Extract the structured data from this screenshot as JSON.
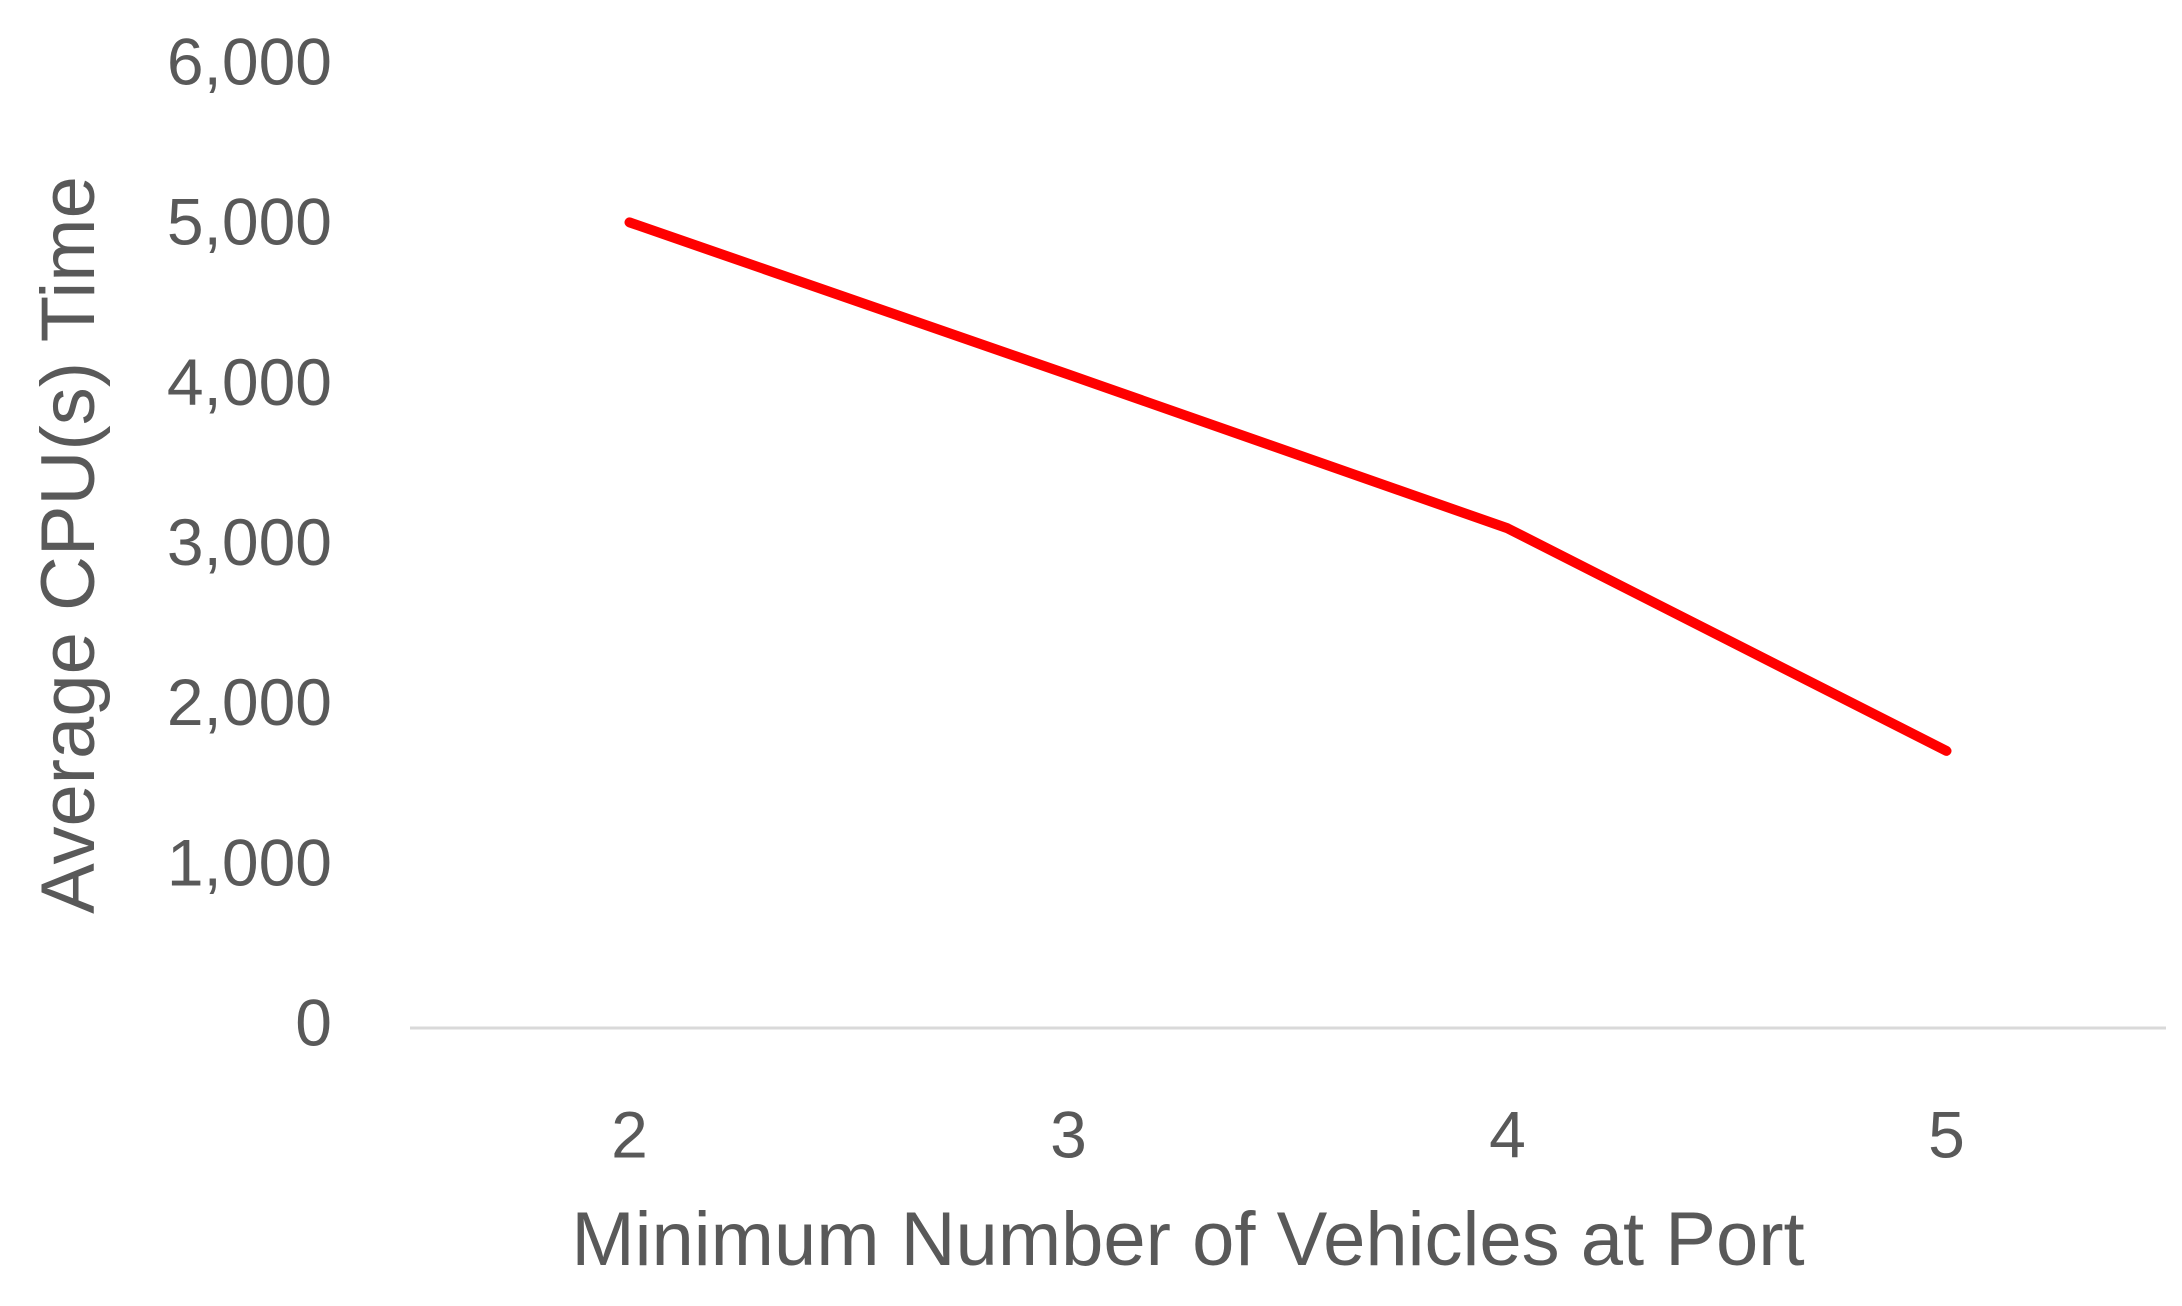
{
  "chart_data": {
    "type": "line",
    "y_label": "Average CPU(s) Time",
    "x_label": "Minimum Number of  Vehicles at Port",
    "categories": [
      "2",
      "3",
      "4",
      "5"
    ],
    "series": [
      {
        "name": "Average CPU(s) Time",
        "color": "#ff0000",
        "values": [
          5030,
          4080,
          3120,
          1730
        ]
      }
    ],
    "ylim": [
      0,
      6000
    ],
    "yticks": [
      0,
      {
        "value": 1000,
        "label": "1,000"
      },
      {
        "value": 2000,
        "label": "2,000"
      },
      {
        "value": 3000,
        "label": "3,000"
      },
      {
        "value": 4000,
        "label": "4,000"
      },
      {
        "value": 5000,
        "label": "5,000"
      },
      {
        "value": 6000,
        "label": "6,000"
      }
    ],
    "grid": false
  }
}
